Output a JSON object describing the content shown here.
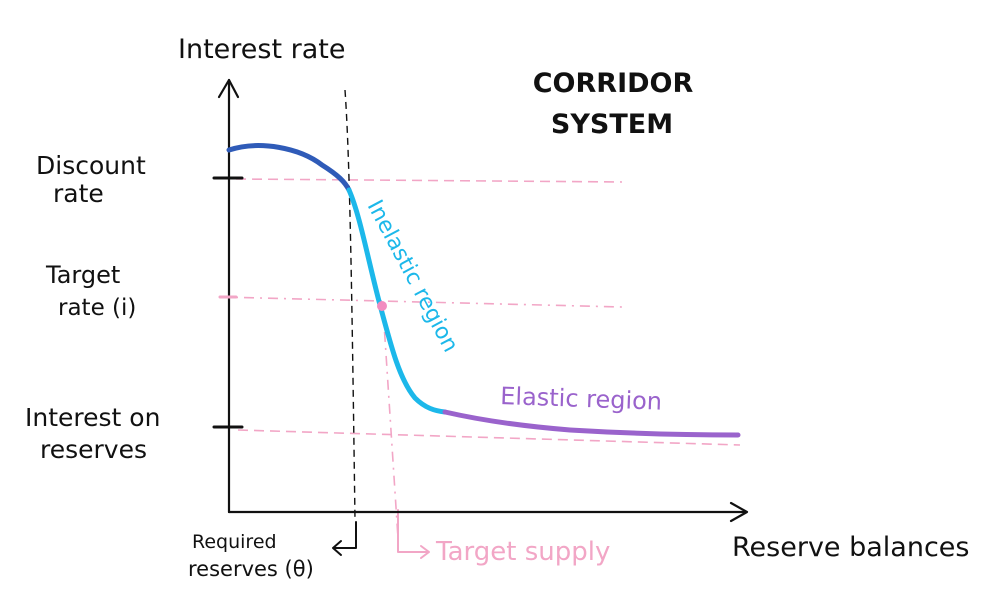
{
  "title": {
    "line1": "CORRIDOR",
    "line2": "SYSTEM"
  },
  "axes": {
    "y_label": "Interest rate",
    "x_label": "Reserve balances"
  },
  "y_ticks": {
    "discount_line1": "Discount",
    "discount_line2": "rate",
    "target_line1": "Target",
    "target_line2": "rate (i)",
    "ior_line1": "Interest on",
    "ior_line2": "reserves"
  },
  "annotations": {
    "required_line1": "Required",
    "required_line2": "reserves (θ)",
    "target_supply": "Target supply",
    "inelastic": "Inelastic region",
    "elastic": "Elastic region"
  },
  "colors": {
    "axis": "#111111",
    "upper_curve": "#2f5bb8",
    "inelastic_curve": "#1cb8ea",
    "elastic_curve": "#9a63cc",
    "guide_lines": "#f2a6c6",
    "target_point": "#f28cc0",
    "required_line": "#111111"
  }
}
